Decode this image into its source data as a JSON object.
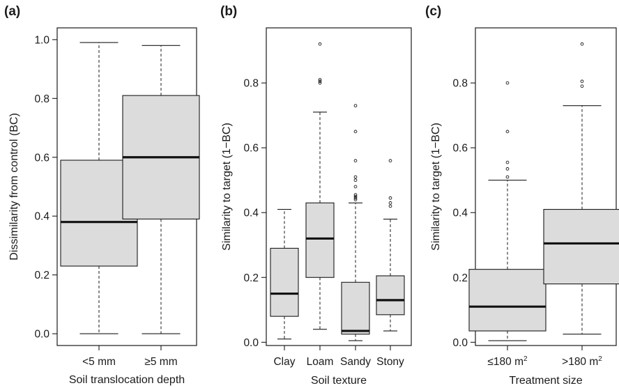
{
  "chart_data": [
    {
      "type": "box",
      "panel": "(a)",
      "title": "",
      "xlabel": "Soil translocation depth",
      "ylabel": "Dissimilarity from control (BC)",
      "ylim": [
        -0.04,
        1.04
      ],
      "yticks": [
        0.0,
        0.2,
        0.4,
        0.6,
        0.8,
        1.0
      ],
      "ytick_labels": [
        "0.0",
        "0.2",
        "0.4",
        "0.6",
        "0.8",
        "1.0"
      ],
      "grid": false,
      "categories": [
        "<5 mm",
        "≥5 mm"
      ],
      "boxes": [
        {
          "category": "<5 mm",
          "whisker_low": 0.0,
          "q1": 0.23,
          "median": 0.38,
          "q3": 0.59,
          "whisker_high": 0.99,
          "outliers": []
        },
        {
          "category": "≥5 mm",
          "whisker_low": 0.0,
          "q1": 0.39,
          "median": 0.6,
          "q3": 0.81,
          "whisker_high": 0.98,
          "outliers": []
        }
      ]
    },
    {
      "type": "box",
      "panel": "(b)",
      "title": "",
      "xlabel": "Soil texture",
      "ylabel": "Similarity to target (1−BC)",
      "ylim": [
        -0.01,
        0.97
      ],
      "yticks": [
        0.0,
        0.2,
        0.4,
        0.6,
        0.8
      ],
      "ytick_labels": [
        "0.0",
        "0.2",
        "0.4",
        "0.6",
        "0.8"
      ],
      "grid": false,
      "categories": [
        "Clay",
        "Loam",
        "Sandy",
        "Stony"
      ],
      "boxes": [
        {
          "category": "Clay",
          "whisker_low": 0.01,
          "q1": 0.08,
          "median": 0.15,
          "q3": 0.29,
          "whisker_high": 0.41,
          "outliers": []
        },
        {
          "category": "Loam",
          "whisker_low": 0.04,
          "q1": 0.2,
          "median": 0.32,
          "q3": 0.43,
          "whisker_high": 0.71,
          "outliers": [
            0.8,
            0.805,
            0.81,
            0.92
          ]
        },
        {
          "category": "Sandy",
          "whisker_low": 0.005,
          "q1": 0.025,
          "median": 0.035,
          "q3": 0.185,
          "whisker_high": 0.43,
          "outliers": [
            0.44,
            0.445,
            0.45,
            0.455,
            0.48,
            0.5,
            0.51,
            0.56,
            0.65,
            0.73
          ]
        },
        {
          "category": "Stony",
          "whisker_low": 0.035,
          "q1": 0.085,
          "median": 0.13,
          "q3": 0.205,
          "whisker_high": 0.38,
          "outliers": [
            0.42,
            0.43,
            0.445,
            0.56
          ]
        }
      ]
    },
    {
      "type": "box",
      "panel": "(c)",
      "title": "",
      "xlabel": "Treatment size",
      "ylabel": "Similarity to target (1−BC)",
      "ylim": [
        -0.01,
        0.97
      ],
      "yticks": [
        0.0,
        0.2,
        0.4,
        0.6,
        0.8
      ],
      "ytick_labels": [
        "0.0",
        "0.2",
        "0.4",
        "0.6",
        "0.8"
      ],
      "grid": false,
      "categories": [
        "≤180 m²",
        ">180 m²"
      ],
      "boxes": [
        {
          "category": "≤180 m²",
          "whisker_low": 0.005,
          "q1": 0.035,
          "median": 0.11,
          "q3": 0.225,
          "whisker_high": 0.5,
          "outliers": [
            0.51,
            0.535,
            0.555,
            0.65,
            0.8
          ]
        },
        {
          "category": ">180 m²",
          "whisker_low": 0.025,
          "q1": 0.18,
          "median": 0.305,
          "q3": 0.41,
          "whisker_high": 0.73,
          "outliers": [
            0.79,
            0.805,
            0.92
          ]
        }
      ]
    }
  ],
  "style": {
    "box_fill": "#dcdcdc",
    "line_color": "#1a1a1a",
    "median_color": "#111111"
  }
}
